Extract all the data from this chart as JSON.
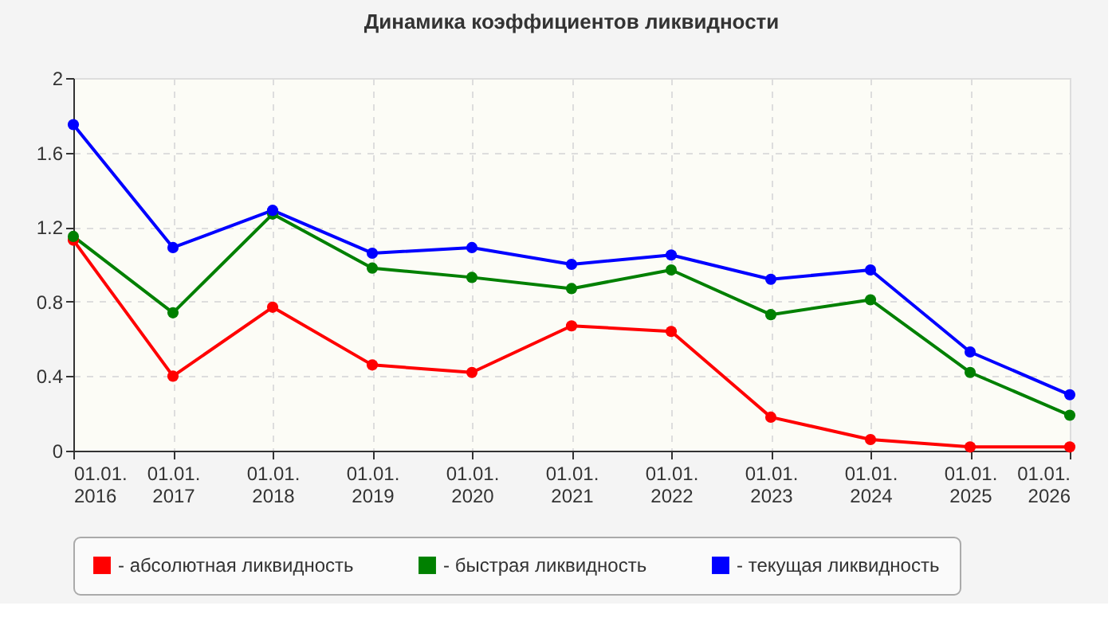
{
  "chart_data": {
    "type": "line",
    "title": "Динамика коэффициентов ликвидности",
    "categories": [
      "01.01. 2016",
      "01.01. 2017",
      "01.01. 2018",
      "01.01. 2019",
      "01.01. 2020",
      "01.01. 2021",
      "01.01. 2022",
      "01.01. 2023",
      "01.01. 2024",
      "01.01. 2025",
      "01.01. 2026"
    ],
    "series": [
      {
        "name": "- абсолютная ликвидность",
        "color": "#ff0000",
        "values": [
          1.13,
          0.4,
          0.77,
          0.46,
          0.42,
          0.67,
          0.64,
          0.18,
          0.06,
          0.02,
          0.02
        ]
      },
      {
        "name": "- быстрая ликвидность",
        "color": "#008000",
        "values": [
          1.15,
          0.74,
          1.27,
          0.98,
          0.93,
          0.87,
          0.97,
          0.73,
          0.81,
          0.42,
          0.19
        ]
      },
      {
        "name": "- текущая ликвидность",
        "color": "#0000ff",
        "values": [
          1.75,
          1.09,
          1.29,
          1.06,
          1.09,
          1.0,
          1.05,
          0.92,
          0.97,
          0.53,
          0.3
        ]
      }
    ],
    "ylim": [
      0,
      2
    ],
    "yticks": [
      0,
      0.4,
      0.8,
      1.2,
      1.6,
      2
    ],
    "grid": true,
    "legend": "bottom",
    "marker": "circle",
    "line_style": "solid"
  }
}
